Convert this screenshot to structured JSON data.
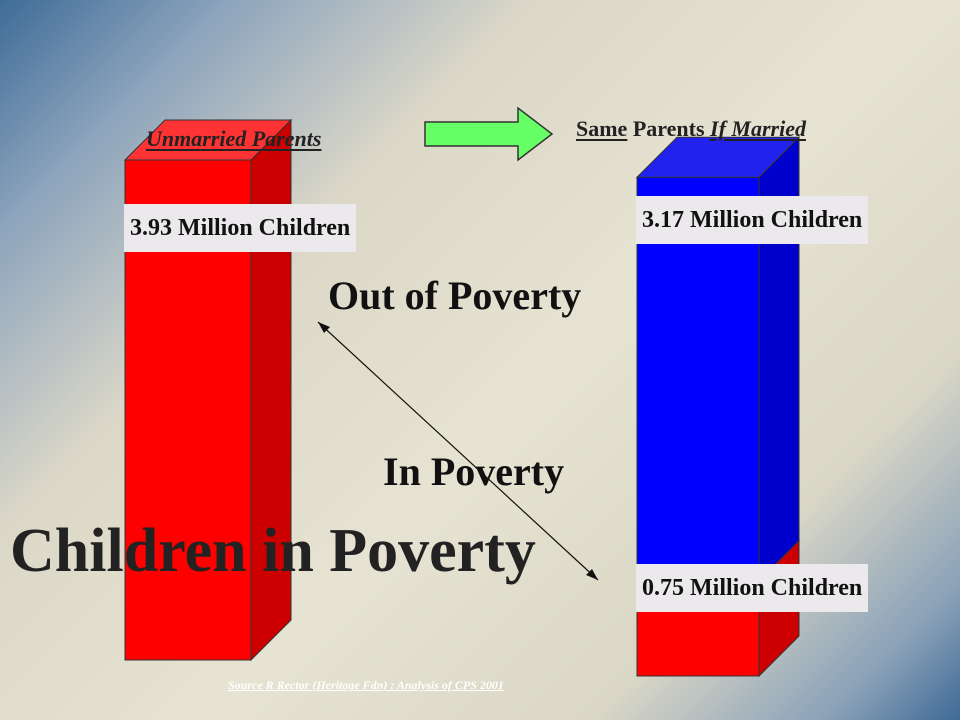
{
  "chart_data": {
    "type": "bar",
    "categories": [
      "Unmarried Parents",
      "Same Parents If Married"
    ],
    "series": [
      {
        "name": "In Poverty",
        "values": [
          3.93,
          0.75
        ]
      },
      {
        "name": "Out of Poverty",
        "values": [
          0,
          3.17
        ]
      }
    ],
    "unit": "Million Children",
    "stacked": true,
    "bar_labels": {
      "left_total": "3.93 Million Children",
      "right_out": "3.17 Million Children",
      "right_in": "0.75 Million Children"
    }
  },
  "headings": {
    "left": "Unmarried Parents",
    "right_word1": "Same",
    "right_word2": " Parents ",
    "right_word3": "If Married"
  },
  "labels": {
    "out_of_poverty": "Out of Poverty",
    "in_poverty": "In Poverty"
  },
  "title": "Children in Poverty",
  "source": "Source R Rector (Heritage Fdn) : Analysis of CPS 2001",
  "colors": {
    "poverty_red": "#ff0000",
    "poverty_red_side": "#cc0000",
    "poverty_red_top": "#ff3333",
    "out_blue": "#0000ff",
    "out_blue_side": "#0000cc",
    "out_blue_top": "#2222ee",
    "arrow_green": "#66ff66"
  }
}
